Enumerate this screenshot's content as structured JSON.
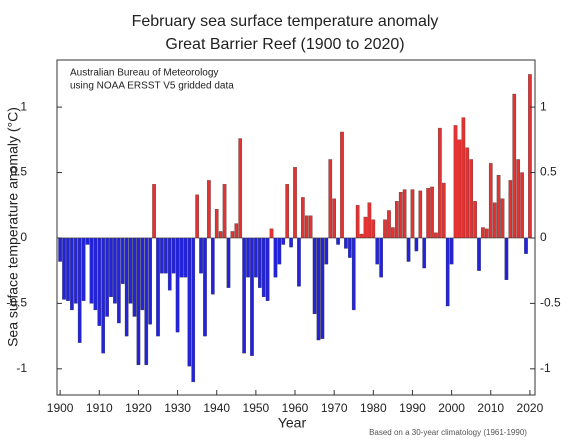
{
  "chart_data": {
    "type": "bar",
    "title": [
      "February sea surface temperature anomaly",
      "Great Barrier Reef (1900 to 2020)"
    ],
    "annotation": [
      "Australian Bureau of Meteorology",
      "using NOAA ERSST V5 gridded data"
    ],
    "footnote": "Based on a 30-year climatology (1961-1990)",
    "x_label": "Year",
    "y_label": "Sea surface temperature anomaly (°C)",
    "x": [
      1900,
      1901,
      1902,
      1903,
      1904,
      1905,
      1906,
      1907,
      1908,
      1909,
      1910,
      1911,
      1912,
      1913,
      1914,
      1915,
      1916,
      1917,
      1918,
      1919,
      1920,
      1921,
      1922,
      1923,
      1924,
      1925,
      1926,
      1927,
      1928,
      1929,
      1930,
      1931,
      1932,
      1933,
      1934,
      1935,
      1936,
      1937,
      1938,
      1939,
      1940,
      1941,
      1942,
      1943,
      1944,
      1945,
      1946,
      1947,
      1948,
      1949,
      1950,
      1951,
      1952,
      1953,
      1954,
      1955,
      1956,
      1957,
      1958,
      1959,
      1960,
      1961,
      1962,
      1963,
      1964,
      1965,
      1966,
      1967,
      1968,
      1969,
      1970,
      1971,
      1972,
      1973,
      1974,
      1975,
      1976,
      1977,
      1978,
      1979,
      1980,
      1981,
      1982,
      1983,
      1984,
      1985,
      1986,
      1987,
      1988,
      1989,
      1990,
      1991,
      1992,
      1993,
      1994,
      1995,
      1996,
      1997,
      1998,
      1999,
      2000,
      2001,
      2002,
      2003,
      2004,
      2005,
      2006,
      2007,
      2008,
      2009,
      2010,
      2011,
      2012,
      2013,
      2014,
      2015,
      2016,
      2017,
      2018,
      2019,
      2020
    ],
    "values": [
      -0.18,
      -0.47,
      -0.48,
      -0.55,
      -0.5,
      -0.8,
      -0.48,
      -0.05,
      -0.5,
      -0.55,
      -0.67,
      -0.88,
      -0.6,
      -0.45,
      -0.5,
      -0.65,
      -0.35,
      -0.75,
      -0.5,
      -0.6,
      -0.97,
      -0.55,
      -0.97,
      -0.66,
      0.41,
      -0.75,
      -0.27,
      -0.27,
      -0.4,
      -0.27,
      -0.72,
      -0.3,
      -0.3,
      -0.98,
      -1.1,
      0.33,
      -0.27,
      -0.75,
      0.44,
      -0.43,
      0.22,
      0.05,
      0.41,
      -0.38,
      0.05,
      0.11,
      0.76,
      -0.88,
      -0.3,
      -0.9,
      -0.3,
      -0.38,
      -0.45,
      -0.48,
      0.07,
      -0.3,
      -0.2,
      -0.05,
      0.41,
      -0.07,
      0.54,
      -0.37,
      0.31,
      0.17,
      0.17,
      -0.58,
      -0.78,
      -0.77,
      -0.2,
      0.6,
      0.3,
      -0.05,
      0.81,
      -0.08,
      -0.15,
      -0.55,
      0.25,
      0.03,
      0.16,
      0.27,
      0.14,
      -0.2,
      -0.3,
      0.14,
      0.21,
      0.08,
      0.28,
      0.35,
      0.37,
      -0.18,
      0.37,
      -0.1,
      0.36,
      -0.23,
      0.38,
      0.39,
      0.04,
      0.84,
      0.42,
      -0.52,
      -0.2,
      0.86,
      0.75,
      0.92,
      0.69,
      0.6,
      0.28,
      -0.25,
      0.08,
      0.07,
      0.57,
      0.27,
      0.48,
      0.3,
      -0.32,
      0.44,
      1.1,
      0.6,
      0.5,
      -0.12,
      1.25
    ],
    "positive_color": "#e33232",
    "negative_color": "#2323dc",
    "xlim": [
      1899.2,
      2021.3
    ],
    "xticks": [
      1900,
      1910,
      1920,
      1930,
      1940,
      1950,
      1960,
      1970,
      1980,
      1990,
      2000,
      2010,
      2020
    ],
    "ylim": [
      -1.2,
      1.36
    ],
    "yticks": [
      -1,
      -0.5,
      0,
      0.5,
      1
    ]
  }
}
